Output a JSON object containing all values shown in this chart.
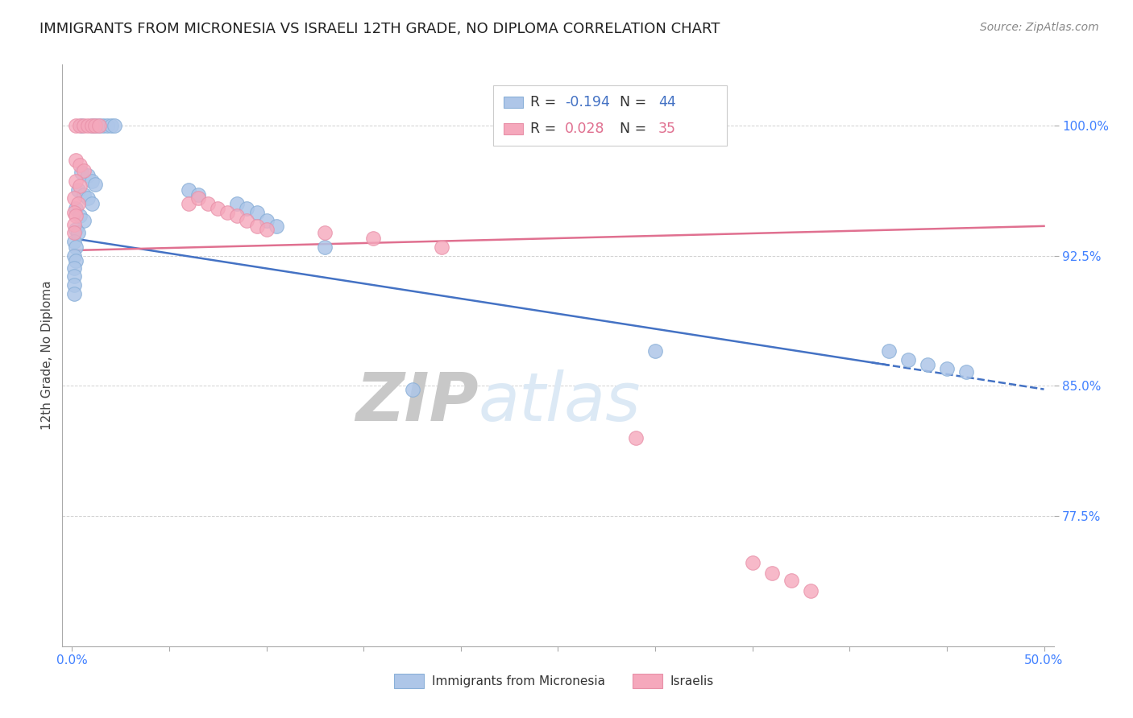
{
  "title": "IMMIGRANTS FROM MICRONESIA VS ISRAELI 12TH GRADE, NO DIPLOMA CORRELATION CHART",
  "source": "Source: ZipAtlas.com",
  "ylabel": "12th Grade, No Diploma",
  "legend_label_blue": "Immigrants from Micronesia",
  "legend_label_pink": "Israelis",
  "R_blue": -0.194,
  "N_blue": 44,
  "R_pink": 0.028,
  "N_pink": 35,
  "xlim": [
    0.0,
    0.5
  ],
  "ylim": [
    0.7,
    1.035
  ],
  "xtick_positions": [
    0.0,
    0.05,
    0.1,
    0.15,
    0.2,
    0.25,
    0.3,
    0.35,
    0.4,
    0.45,
    0.5
  ],
  "xticklabels": [
    "0.0%",
    "",
    "",
    "",
    "",
    "",
    "",
    "",
    "",
    "",
    "50.0%"
  ],
  "ytick_positions": [
    0.775,
    0.85,
    0.925,
    1.0
  ],
  "yticklabels": [
    "77.5%",
    "85.0%",
    "92.5%",
    "100.0%"
  ],
  "blue_x": [
    0.005,
    0.01,
    0.012,
    0.014,
    0.016,
    0.018,
    0.02,
    0.022,
    0.005,
    0.008,
    0.01,
    0.012,
    0.003,
    0.006,
    0.008,
    0.01,
    0.002,
    0.004,
    0.006,
    0.002,
    0.003,
    0.001,
    0.002,
    0.001,
    0.002,
    0.001,
    0.001,
    0.001,
    0.001,
    0.06,
    0.065,
    0.085,
    0.09,
    0.095,
    0.1,
    0.105,
    0.13,
    0.175,
    0.3,
    0.42,
    0.43,
    0.44,
    0.45,
    0.46
  ],
  "blue_y": [
    1.0,
    1.0,
    1.0,
    1.0,
    1.0,
    1.0,
    1.0,
    1.0,
    0.973,
    0.971,
    0.968,
    0.966,
    0.963,
    0.96,
    0.958,
    0.955,
    0.952,
    0.948,
    0.945,
    0.94,
    0.938,
    0.933,
    0.93,
    0.925,
    0.922,
    0.918,
    0.913,
    0.908,
    0.903,
    0.963,
    0.96,
    0.955,
    0.952,
    0.95,
    0.945,
    0.942,
    0.93,
    0.848,
    0.87,
    0.87,
    0.865,
    0.862,
    0.86,
    0.858
  ],
  "pink_x": [
    0.002,
    0.004,
    0.006,
    0.008,
    0.01,
    0.012,
    0.014,
    0.002,
    0.004,
    0.006,
    0.002,
    0.004,
    0.001,
    0.003,
    0.001,
    0.002,
    0.001,
    0.001,
    0.06,
    0.065,
    0.07,
    0.075,
    0.08,
    0.085,
    0.09,
    0.095,
    0.1,
    0.13,
    0.155,
    0.19,
    0.29,
    0.35,
    0.36,
    0.37,
    0.38
  ],
  "pink_y": [
    1.0,
    1.0,
    1.0,
    1.0,
    1.0,
    1.0,
    1.0,
    0.98,
    0.977,
    0.974,
    0.968,
    0.965,
    0.958,
    0.955,
    0.95,
    0.948,
    0.943,
    0.938,
    0.955,
    0.958,
    0.955,
    0.952,
    0.95,
    0.948,
    0.945,
    0.942,
    0.94,
    0.938,
    0.935,
    0.93,
    0.82,
    0.748,
    0.742,
    0.738,
    0.732
  ],
  "blue_color": "#aec6e8",
  "pink_color": "#f5a8bc",
  "trend_blue_color": "#4472c4",
  "trend_pink_color": "#e07090",
  "background_color": "#ffffff",
  "watermark_color": "#dce9f5",
  "title_fontsize": 13,
  "axis_label_fontsize": 11,
  "tick_fontsize": 11,
  "tick_color": "#4080ff",
  "source_fontsize": 10
}
